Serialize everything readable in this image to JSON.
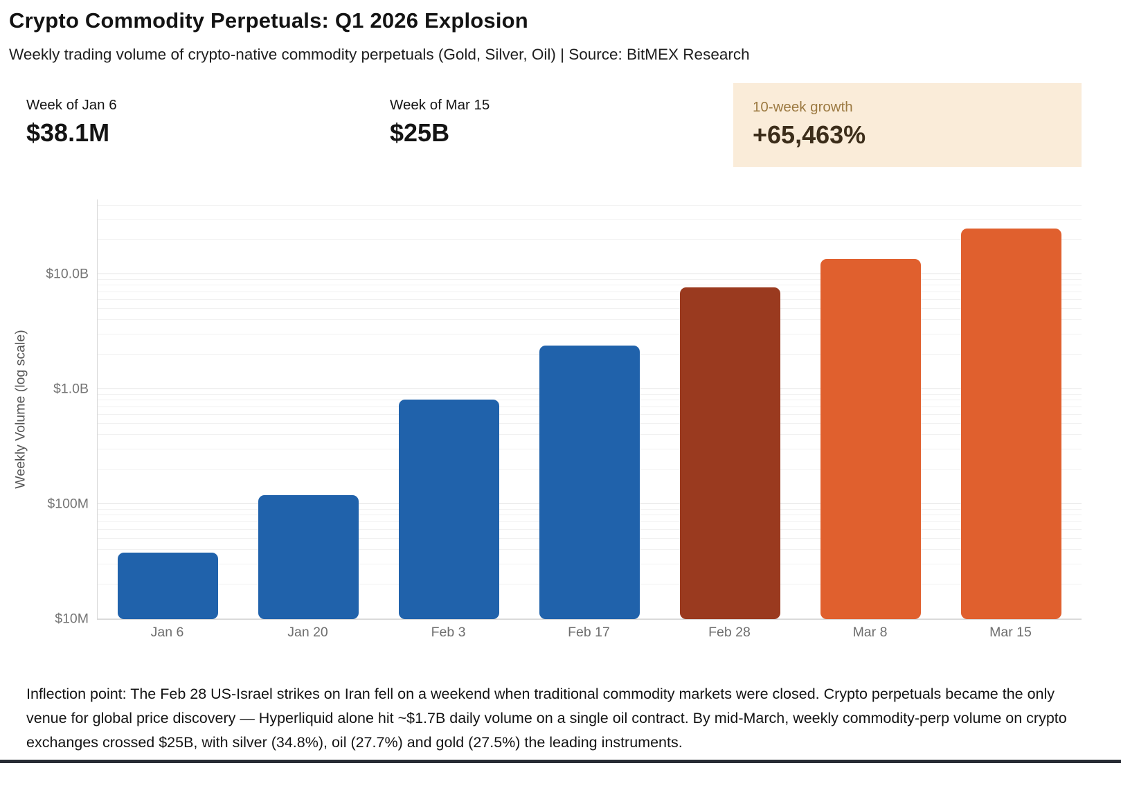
{
  "page": {
    "title": "Crypto Commodity Perpetuals: Q1 2026 Explosion",
    "subtitle": "Weekly trading volume of crypto-native commodity perpetuals (Gold, Silver, Oil) | Source: BitMEX Research"
  },
  "stats": [
    {
      "label": "Week of Jan 6",
      "value": "$38.1M",
      "highlighted": false
    },
    {
      "label": "Week of Mar 15",
      "value": "$25B",
      "highlighted": false
    },
    {
      "label": "10-week growth",
      "value": "+65,463%",
      "highlighted": true
    }
  ],
  "colors": {
    "bar_blue": "#2062ab",
    "bar_dark_red": "#9a3a1f",
    "bar_orange": "#e0602e",
    "highlight_bg": "#faecd9",
    "highlight_label": "#9c7a42",
    "highlight_value": "#3c2d1a",
    "grid_major": "#e2e2e2",
    "grid_minor": "#f1f1f1",
    "tick_text": "#757575"
  },
  "chart_data": {
    "type": "bar",
    "title": "",
    "xlabel": "",
    "ylabel": "Weekly Volume (log scale)",
    "yscale": "log",
    "unit": "USD billions",
    "categories": [
      "Jan 6",
      "Jan 20",
      "Feb 3",
      "Feb 17",
      "Feb 28",
      "Mar 8",
      "Mar 15"
    ],
    "values": [
      0.0381,
      0.12,
      0.82,
      2.4,
      7.7,
      13.6,
      25
    ],
    "bar_colors": [
      "#2062ab",
      "#2062ab",
      "#2062ab",
      "#2062ab",
      "#9a3a1f",
      "#e0602e",
      "#e0602e"
    ],
    "ylim": [
      0.01,
      45
    ],
    "y_ticks": [
      {
        "value": 0.01,
        "label": "$10M"
      },
      {
        "value": 0.1,
        "label": "$100M"
      },
      {
        "value": 1,
        "label": "$1.0B"
      },
      {
        "value": 10,
        "label": "$10.0B"
      }
    ],
    "y_minor_ticks": [
      0.02,
      0.03,
      0.04,
      0.05,
      0.06,
      0.07,
      0.08,
      0.09,
      0.2,
      0.3,
      0.4,
      0.5,
      0.6,
      0.7,
      0.8,
      0.9,
      2,
      3,
      4,
      5,
      6,
      7,
      8,
      9,
      20,
      30,
      40
    ],
    "grid": true,
    "legend": false
  },
  "footer": {
    "text": "Inflection point: The Feb 28 US-Israel strikes on Iran fell on a weekend when traditional commodity markets were closed. Crypto perpetuals became the only venue for global price discovery — Hyperliquid alone hit ~$1.7B daily volume on a single oil contract. By mid-March, weekly commodity-perp volume on crypto exchanges crossed $25B, with silver (34.8%), oil (27.7%) and gold (27.5%) the leading instruments."
  }
}
